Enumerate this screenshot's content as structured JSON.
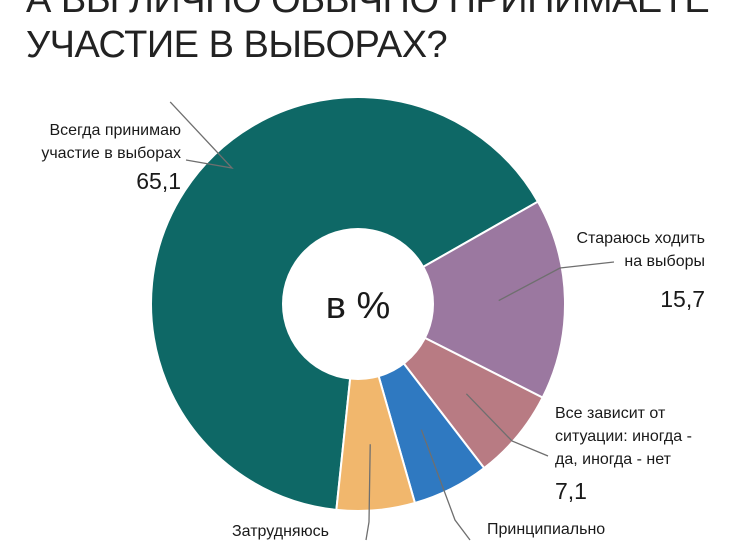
{
  "title": "А ВЫ ЛИЧНО ОБЫЧНО ПРИНИМАЕТЕ\nУЧАСТИЕ В ВЫБОРАХ?",
  "center_label": "в %",
  "chart_data": {
    "type": "pie",
    "donut": true,
    "unit": "%",
    "slices": [
      {
        "label": "Всегда принимаю участие в выборах",
        "value": 65.1,
        "value_text": "65,1",
        "color": "#0e6866"
      },
      {
        "label": "Стараюсь ходить на выборы",
        "value": 15.7,
        "value_text": "15,7",
        "color": "#9b78a0"
      },
      {
        "label": "Все зависит от ситуации: иногда - да, иногда - нет",
        "value": 7.1,
        "value_text": "7,1",
        "color": "#b87b83"
      },
      {
        "label": "Принципиально",
        "value": 6.0,
        "value_text": "",
        "color": "#2f79c1"
      },
      {
        "label": "Затрудняюсь",
        "value": 6.1,
        "value_text": "",
        "color": "#f1b76d"
      }
    ]
  },
  "labels": {
    "always_line1": "Всегда принимаю",
    "always_line2": "участие в выборах",
    "try_line1": "Стараюсь ходить",
    "try_line2": "на выборы",
    "depends_line1": "Все зависит от",
    "depends_line2": "ситуации: иногда -",
    "depends_line3": "да, иногда - нет",
    "principle_line1": "Принципиально",
    "hard_line1": "Затрудняюсь"
  }
}
